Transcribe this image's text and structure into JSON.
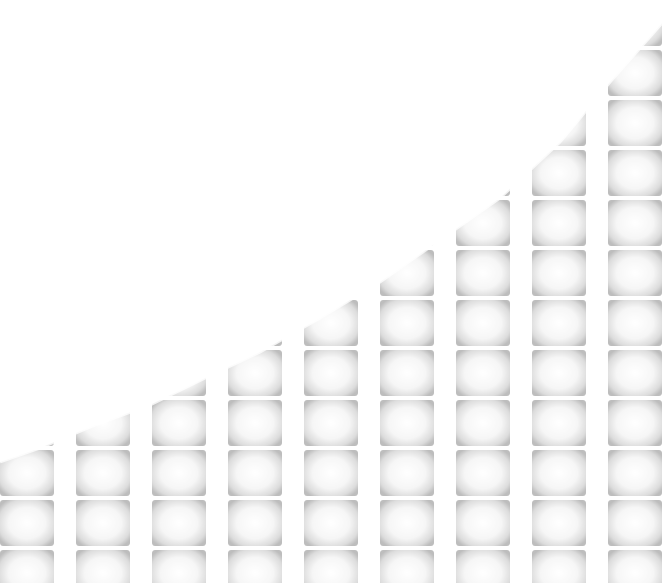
{
  "graphic": {
    "description_icon": "rising-tiled-columns-icon",
    "column_count": 9,
    "colors": {
      "background": "#ffffff",
      "tile_edge": "#bdbdbd",
      "tile_mid": "#e6e6e6",
      "tile_center": "#ffffff"
    }
  }
}
